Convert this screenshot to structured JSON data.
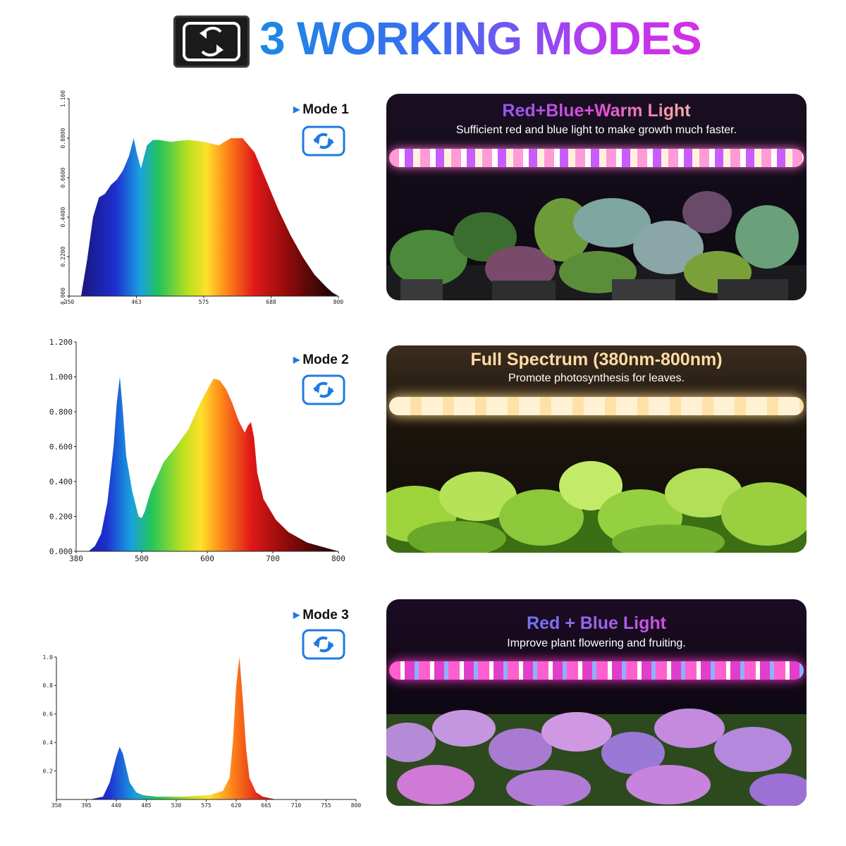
{
  "header": {
    "title": "3 WORKING MODES",
    "icon": "mode-switch-icon",
    "title_gradient": [
      "#1e88e5",
      "#b53cf0",
      "#d62ee6"
    ]
  },
  "modes": [
    {
      "label": "Mode 1",
      "icon": "mode-switch-icon",
      "panel": {
        "title": "Red+Blue+Warm Light",
        "subtitle": "Sufficient red and blue light to make growth much faster.",
        "title_colors": [
          "#7a5cff",
          "#e04bd8",
          "#ffd28a"
        ],
        "tube": "pink-blue-white"
      },
      "chart_data": {
        "type": "area",
        "title": "",
        "xlabel": "",
        "ylabel": "",
        "x_ticks": [
          "350",
          "463",
          "575",
          "688",
          "800"
        ],
        "y_ticks": [
          "0.000",
          "0.2200",
          "0.4400",
          "0.6600",
          "0.8800",
          "1.100"
        ],
        "xlim": [
          350,
          800
        ],
        "ylim": [
          0,
          1.1
        ],
        "series": [
          {
            "x": [
              370,
              380,
              390,
              400,
              410,
              420,
              430,
              440,
              450,
              458,
              463,
              470,
              480,
              490,
              500,
              520,
              550,
              575,
              600,
              620,
              640,
              660,
              680,
              700,
              720,
              740,
              760,
              780,
              790,
              800
            ],
            "y": [
              0,
              0.2,
              0.44,
              0.55,
              0.57,
              0.62,
              0.65,
              0.7,
              0.78,
              0.88,
              0.8,
              0.71,
              0.84,
              0.87,
              0.87,
              0.86,
              0.87,
              0.86,
              0.84,
              0.88,
              0.88,
              0.8,
              0.64,
              0.48,
              0.34,
              0.22,
              0.12,
              0.05,
              0.02,
              0
            ]
          }
        ]
      }
    },
    {
      "label": "Mode 2",
      "icon": "mode-switch-icon",
      "panel": {
        "title": "Full Spectrum (380nm-800nm)",
        "subtitle": "Promote photosynthesis for leaves.",
        "title_colors": [
          "#ffd9a0"
        ],
        "tube": "warm-white"
      },
      "chart_data": {
        "type": "area",
        "title": "",
        "xlabel": "",
        "ylabel": "",
        "x_ticks": [
          "380",
          "500",
          "600",
          "700",
          "800"
        ],
        "y_ticks": [
          "0.000",
          "0.200",
          "0.400",
          "0.600",
          "0.800",
          "1.000",
          "1.200"
        ],
        "xlim": [
          380,
          800
        ],
        "ylim": [
          0,
          1.2
        ],
        "series": [
          {
            "x": [
              400,
              410,
              420,
              430,
              440,
              445,
              450,
              455,
              460,
              470,
              480,
              485,
              490,
              500,
              520,
              540,
              560,
              580,
              600,
              610,
              620,
              630,
              640,
              650,
              655,
              660,
              665,
              670,
              680,
              700,
              720,
              750,
              780,
              800
            ],
            "y": [
              0,
              0.03,
              0.1,
              0.28,
              0.6,
              0.85,
              1.0,
              0.8,
              0.55,
              0.34,
              0.2,
              0.19,
              0.23,
              0.35,
              0.51,
              0.6,
              0.7,
              0.86,
              0.99,
              0.98,
              0.93,
              0.85,
              0.75,
              0.68,
              0.72,
              0.74,
              0.65,
              0.45,
              0.3,
              0.18,
              0.11,
              0.05,
              0.02,
              0
            ]
          }
        ]
      }
    },
    {
      "label": "Mode 3",
      "icon": "mode-switch-icon",
      "panel": {
        "title": "Red + Blue Light",
        "subtitle": "Improve plant flowering and fruiting.",
        "title_colors": [
          "#5b7cff",
          "#e04bd8"
        ],
        "tube": "pink-blue"
      },
      "chart_data": {
        "type": "area",
        "title": "",
        "xlabel": "",
        "ylabel": "",
        "x_ticks": [
          "350",
          "395",
          "440",
          "485",
          "530",
          "575",
          "620",
          "665",
          "710",
          "755",
          "800"
        ],
        "y_ticks": [
          "0.2",
          "0.4",
          "0.6",
          "0.8",
          "1.0"
        ],
        "xlim": [
          350,
          800
        ],
        "ylim": [
          0,
          1.0
        ],
        "series": [
          {
            "x": [
              400,
              420,
              430,
              440,
              445,
              450,
              460,
              470,
              480,
              500,
              540,
              580,
              600,
              610,
              615,
              620,
              625,
              630,
              635,
              640,
              650,
              660,
              670,
              680
            ],
            "y": [
              0,
              0.02,
              0.12,
              0.3,
              0.37,
              0.32,
              0.12,
              0.05,
              0.03,
              0.02,
              0.02,
              0.03,
              0.06,
              0.15,
              0.4,
              0.8,
              1.0,
              0.7,
              0.35,
              0.15,
              0.05,
              0.02,
              0.01,
              0
            ]
          }
        ]
      }
    }
  ]
}
